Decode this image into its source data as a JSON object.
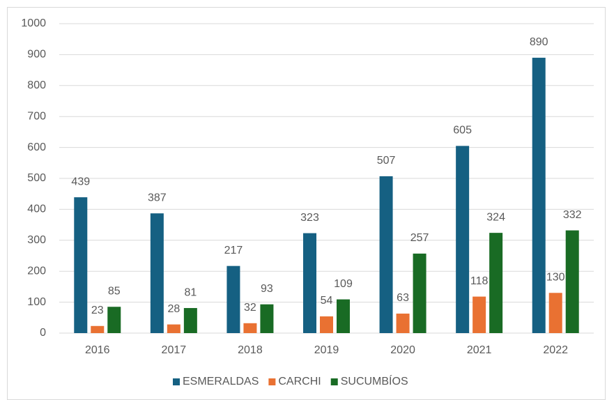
{
  "chart_data": {
    "type": "bar",
    "categories": [
      "2016",
      "2017",
      "2018",
      "2019",
      "2020",
      "2021",
      "2022"
    ],
    "series": [
      {
        "name": "ESMERALDAS",
        "color": "#156082",
        "values": [
          439,
          387,
          217,
          323,
          507,
          605,
          890
        ]
      },
      {
        "name": "CARCHI",
        "color": "#e97132",
        "values": [
          23,
          28,
          32,
          54,
          63,
          118,
          130
        ]
      },
      {
        "name": "SUCUMBÍOS",
        "color": "#196b24",
        "values": [
          85,
          81,
          93,
          109,
          257,
          324,
          332
        ]
      }
    ],
    "ylim": [
      0,
      1000
    ],
    "yticks": [
      0,
      100,
      200,
      300,
      400,
      500,
      600,
      700,
      800,
      900,
      1000
    ],
    "grid": true,
    "legend": "bottom"
  }
}
